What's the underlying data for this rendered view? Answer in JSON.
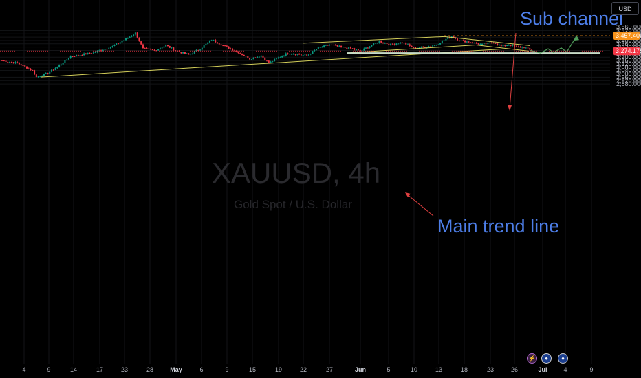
{
  "currency_label": "USD",
  "chart_data": {
    "type": "candlestick",
    "symbol_watermark": "XAUUSD, 4h",
    "name_watermark": "Gold Spot / U.S. Dollar",
    "ylim": [
      2860,
      3600
    ],
    "y_ticks": [
      2880,
      2920,
      2960,
      3000,
      3040,
      3080,
      3120,
      3160,
      3200,
      3240,
      3280,
      3320,
      3360,
      3400,
      3440,
      3480,
      3520,
      3560
    ],
    "y_tick_labels": [
      "2,880.000",
      "2,920.000",
      "2,960.000",
      "3,000.000",
      "3,040.000",
      "3,080.000",
      "3,120.000",
      "3,160.000",
      "3,200.000",
      "3,240.000",
      "3,280.000",
      "3,320.000",
      "3,360.000",
      "3,400.000",
      "3,440.000",
      "3,480.000",
      "3,520.000",
      "3,560.000"
    ],
    "x_labels": [
      "4",
      "9",
      "14",
      "17",
      "23",
      "28",
      "May",
      "6",
      "9",
      "15",
      "19",
      "22",
      "27",
      "Jun",
      "5",
      "10",
      "13",
      "18",
      "23",
      "26",
      "Jul",
      "4",
      "9"
    ],
    "x_label_bold": [
      "May",
      "Jun",
      "Jul"
    ],
    "price_levels": [
      {
        "label": "3,457.406",
        "value": 3457.4,
        "color": "#f7931a",
        "style": "dashed"
      },
      {
        "label": "3,274.175",
        "value": 3274.2,
        "color": "#f23645",
        "style": "dotted"
      }
    ],
    "support_level": {
      "value": 3250,
      "color": "#c8dcc8"
    },
    "anchors": [
      {
        "bar": 0,
        "price": 3160
      },
      {
        "bar": 8,
        "price": 3130
      },
      {
        "bar": 16,
        "price": 3040
      },
      {
        "bar": 18,
        "price": 2962
      },
      {
        "bar": 24,
        "price": 3010
      },
      {
        "bar": 30,
        "price": 3100
      },
      {
        "bar": 36,
        "price": 3210
      },
      {
        "bar": 48,
        "price": 3255
      },
      {
        "bar": 58,
        "price": 3330
      },
      {
        "bar": 66,
        "price": 3430
      },
      {
        "bar": 70,
        "price": 3490
      },
      {
        "bar": 74,
        "price": 3300
      },
      {
        "bar": 80,
        "price": 3280
      },
      {
        "bar": 86,
        "price": 3340
      },
      {
        "bar": 92,
        "price": 3270
      },
      {
        "bar": 98,
        "price": 3230
      },
      {
        "bar": 104,
        "price": 3300
      },
      {
        "bar": 110,
        "price": 3410
      },
      {
        "bar": 116,
        "price": 3340
      },
      {
        "bar": 124,
        "price": 3260
      },
      {
        "bar": 130,
        "price": 3180
      },
      {
        "bar": 136,
        "price": 3220
      },
      {
        "bar": 140,
        "price": 3130
      },
      {
        "bar": 144,
        "price": 3180
      },
      {
        "bar": 150,
        "price": 3250
      },
      {
        "bar": 154,
        "price": 3240
      },
      {
        "bar": 160,
        "price": 3220
      },
      {
        "bar": 166,
        "price": 3310
      },
      {
        "bar": 172,
        "price": 3350
      },
      {
        "bar": 178,
        "price": 3320
      },
      {
        "bar": 184,
        "price": 3300
      },
      {
        "bar": 188,
        "price": 3270
      },
      {
        "bar": 192,
        "price": 3320
      },
      {
        "bar": 198,
        "price": 3390
      },
      {
        "bar": 204,
        "price": 3350
      },
      {
        "bar": 210,
        "price": 3380
      },
      {
        "bar": 216,
        "price": 3310
      },
      {
        "bar": 222,
        "price": 3320
      },
      {
        "bar": 228,
        "price": 3350
      },
      {
        "bar": 234,
        "price": 3430
      },
      {
        "bar": 236,
        "price": 3450
      },
      {
        "bar": 240,
        "price": 3400
      },
      {
        "bar": 246,
        "price": 3380
      },
      {
        "bar": 252,
        "price": 3350
      },
      {
        "bar": 258,
        "price": 3380
      },
      {
        "bar": 262,
        "price": 3330
      },
      {
        "bar": 266,
        "price": 3350
      },
      {
        "bar": 270,
        "price": 3320
      },
      {
        "bar": 274,
        "price": 3320
      },
      {
        "bar": 278,
        "price": 3275
      }
    ],
    "bar_count": 279,
    "annotations": [
      {
        "text": "Sub channel",
        "color": "#4d7ee8"
      },
      {
        "text": "Main trend line",
        "color": "#4d7ee8"
      }
    ],
    "drawings": {
      "main_trend_line": {
        "color": "#d4cf5a",
        "from": {
          "date": "Apr 8",
          "price": 2962
        },
        "to": {
          "date": "Jun 24",
          "price": 3298
        }
      },
      "channel_upper": {
        "color": "#d4cf5a",
        "from": {
          "date": "May 23",
          "price": 3368
        },
        "to": {
          "date": "Jun 16",
          "price": 3446
        }
      },
      "channel_lower": {
        "color": "#d4cf5a",
        "from": {
          "date": "May 28",
          "price": 3252
        },
        "to": {
          "date": "Jun 20",
          "price": 3346
        }
      },
      "sub_channel_upper": {
        "color": "#d4cf5a",
        "from": {
          "date": "Jun 16",
          "price": 3446
        },
        "to": {
          "date": "Jun 30",
          "price": 3338
        }
      },
      "sub_channel_lower": {
        "color": "#d4cf5a",
        "from": {
          "date": "Jun 20",
          "price": 3346
        },
        "to": {
          "date": "Jun 29",
          "price": 3272
        }
      },
      "projection": {
        "color": "#4f9d5a",
        "points_price": [
          3280,
          3250,
          3300,
          3256,
          3310,
          3262,
          3448
        ]
      }
    },
    "colors": {
      "up": "#089981",
      "down": "#f23645",
      "background": "#000000",
      "grid": "#131417"
    }
  }
}
